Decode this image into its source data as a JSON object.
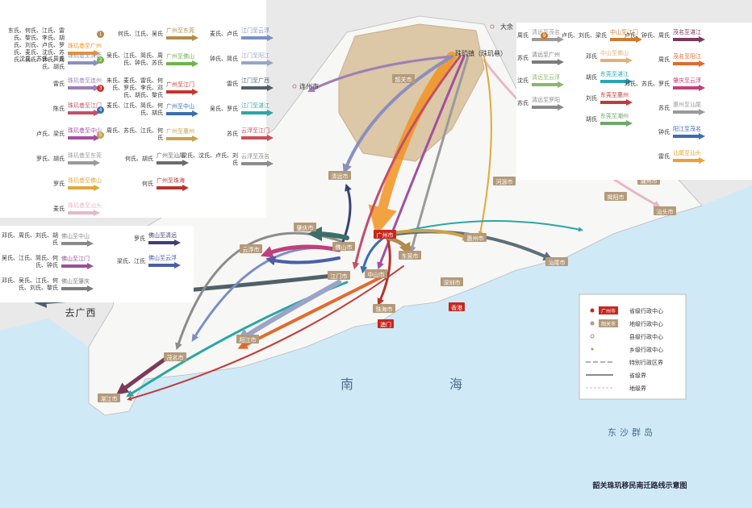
{
  "title": "韶关珠玑移民南迁路线示意图",
  "legend": {
    "items": [
      {
        "sample": "广州市",
        "label": "省级行政中心"
      },
      {
        "sample": "韶关市",
        "label": "地级行政中心"
      },
      {
        "label": "县级行政中心"
      },
      {
        "label": "乡级行政中心"
      },
      {
        "label": "特别行政区界"
      },
      {
        "label": "省级界"
      },
      {
        "label": "地级界"
      }
    ]
  },
  "places": [
    {
      "label": "广州市",
      "kind": "province"
    },
    {
      "label": "韶关市",
      "kind": "prefecture"
    },
    {
      "label": "珠玑镇（珠玑巷）",
      "kind": "town"
    },
    {
      "label": "大余",
      "kind": "county"
    },
    {
      "label": "连州市",
      "kind": "county"
    },
    {
      "label": "清远市",
      "kind": "prefecture"
    },
    {
      "label": "佛山市",
      "kind": "prefecture"
    },
    {
      "label": "肇庆市",
      "kind": "prefecture"
    },
    {
      "label": "云浮市",
      "kind": "prefecture"
    },
    {
      "label": "江门市",
      "kind": "prefecture"
    },
    {
      "label": "中山市",
      "kind": "prefecture"
    },
    {
      "label": "珠海市",
      "kind": "prefecture"
    },
    {
      "label": "澳门",
      "kind": "province"
    },
    {
      "label": "香港",
      "kind": "province"
    },
    {
      "label": "深圳市",
      "kind": "prefecture"
    },
    {
      "label": "东莞市",
      "kind": "prefecture"
    },
    {
      "label": "惠州市",
      "kind": "prefecture"
    },
    {
      "label": "河源市",
      "kind": "prefecture"
    },
    {
      "label": "梅州市",
      "kind": "prefecture"
    },
    {
      "label": "揭阳市",
      "kind": "prefecture"
    },
    {
      "label": "潮州市",
      "kind": "prefecture"
    },
    {
      "label": "汕头市",
      "kind": "prefecture"
    },
    {
      "label": "汕尾市",
      "kind": "prefecture"
    },
    {
      "label": "阳江市",
      "kind": "prefecture"
    },
    {
      "label": "茂名市",
      "kind": "prefecture"
    },
    {
      "label": "湛江市",
      "kind": "prefecture"
    }
  ],
  "sea_labels": [
    "南",
    "海",
    "东沙群岛",
    "去广西"
  ],
  "route_groups": [
    {
      "routes": [
        {
          "surnames": "东氏、何氏、江氏、雷氏、黎氏、李氏、胡氏、刘氏、卢氏、罗氏、麦氏、沈氏、苏氏、吴氏、钟氏、周氏、胡氏",
          "label": "珠玑巷至广州",
          "color": "#f39422"
        },
        {
          "surnames": "沈氏、苏氏、周氏",
          "label": "珠玑巷至清远",
          "color": "#8a8fc0"
        },
        {
          "surnames": "雷氏",
          "label": "珠玑巷至连州",
          "color": "#9d7fb8"
        },
        {
          "surnames": "陈氏",
          "label": "珠玑巷至江门",
          "color": "#c0506a"
        },
        {
          "surnames": "卢氏、梁氏",
          "label": "珠玑巷至中山",
          "color": "#a24f9e"
        },
        {
          "surnames": "罗氏、胡氏",
          "label": "珠玑巷至东莞",
          "color": "#9a9a9a"
        },
        {
          "surnames": "罗氏",
          "label": "珠玑巷至佛山",
          "color": "#e0a83a"
        },
        {
          "surnames": "麦氏",
          "label": "珠玑巷至汕头",
          "color": "#e7b7c9"
        }
      ]
    },
    {
      "routes": [
        {
          "num": "1",
          "surnames": "何氏、江氏、吴氏",
          "label": "广州至东莞",
          "color": "#b38b4a"
        },
        {
          "num": "2",
          "surnames": "吴氏、江氏、简氏、周氏、钟氏、苏氏",
          "label": "广州至佛山",
          "color": "#6fb24a"
        },
        {
          "num": "3",
          "surnames": "朱氏、麦氏、雷氏、何氏、罗氏、李氏、邓氏、胡氏、黎氏",
          "label": "广州至江门",
          "color": "#c8352b"
        },
        {
          "num": "4",
          "surnames": "麦氏、江氏、简氏、何氏、胡氏",
          "label": "广州至中山",
          "color": "#3a6fb0"
        },
        {
          "num": "5",
          "surnames": "周氏、苏氏、江氏、何氏",
          "label": "广州至惠州",
          "color": "#c9a24c"
        },
        {
          "surnames": "何氏、胡氏",
          "label": "广州至汕尾",
          "color": "#6b6b6b"
        },
        {
          "surnames": "何氏",
          "label": "广州至珠海",
          "color": "#b5342e"
        }
      ]
    },
    {
      "routes": [
        {
          "surnames": "麦氏、卢氏",
          "label": "江门至云浮",
          "color": "#7a8fc4"
        },
        {
          "surnames": "钟氏、简氏",
          "label": "江门至阳江",
          "color": "#9aa4c8"
        },
        {
          "surnames": "雷氏",
          "label": "江门至广西",
          "color": "#4f6068"
        },
        {
          "surnames": "吴氏、罗氏",
          "label": "江门至湛江",
          "color": "#2aa6a6"
        },
        {
          "surnames": "苏氏",
          "label": "云浮至江门",
          "color": "#c94d58"
        },
        {
          "surnames": "梁氏、沈氏、卢氏、刘氏",
          "label": "云浮至茂名",
          "color": "#8c8c8c"
        }
      ]
    },
    {
      "routes": [
        {
          "num": "6",
          "surnames": "邓氏、周氏、刘氏、胡氏",
          "label": "佛山至中山",
          "color": "#8a8a8a"
        },
        {
          "num": "7",
          "surnames": "吴氏、江氏、简氏、何氏、钟氏",
          "label": "佛山至江门",
          "color": "#9a4f9a"
        },
        {
          "num": "8",
          "surnames": "邓氏、吴氏、江氏、何氏、刘氏、黎氏",
          "label": "佛山至肇庆",
          "color": "#7c7c7c"
        }
      ]
    },
    {
      "routes": [
        {
          "surnames": "罗氏",
          "label": "佛山至清远",
          "color": "#3a3f7a"
        },
        {
          "surnames": "梁氏、江氏",
          "label": "佛山至云浮",
          "color": "#4a5fa8"
        }
      ]
    },
    {
      "routes": [
        {
          "surnames": "周氏",
          "label": "清远至茂名",
          "color": "#9a9a9a"
        },
        {
          "surnames": "苏氏",
          "label": "清远至广州",
          "color": "#7b7b7b"
        },
        {
          "surnames": "沈氏",
          "label": "清远至云浮",
          "color": "#86b86a"
        },
        {
          "surnames": "苏氏",
          "label": "清远至罗阳",
          "color": "#8a8a8a"
        }
      ]
    },
    {
      "routes": [
        {
          "num": "9",
          "surnames": "卢氏、刘氏、梁氏",
          "label": "中山至江门",
          "color": "#d07a2a"
        },
        {
          "surnames": "邓氏",
          "label": "中山至佛山",
          "color": "#e3b07a"
        },
        {
          "surnames": "胡氏",
          "label": "东莞至湛江",
          "color": "#2ba5b5"
        },
        {
          "surnames": "刘氏",
          "label": "东莞至惠州",
          "color": "#c03a3a"
        },
        {
          "surnames": "胡氏",
          "label": "东莞至潮州",
          "color": "#6ea86a"
        }
      ]
    },
    {
      "routes": [
        {
          "surnames": "卢氏、钟氏、周氏",
          "label": "茂名至湛江",
          "color": "#7b3a58"
        },
        {
          "surnames": "周氏",
          "label": "茂名至阳江",
          "color": "#e26a2c"
        },
        {
          "surnames": "邓氏、苏氏、罗氏",
          "label": "肇庆至云浮",
          "color": "#c0407a"
        },
        {
          "surnames": "苏氏",
          "label": "惠州至汕尾",
          "color": "#9a9a9a"
        },
        {
          "surnames": "钟氏",
          "label": "阳江至茂名",
          "color": "#3a6fb0"
        },
        {
          "surnames": "雷氏",
          "label": "汕尾至汕头",
          "color": "#f0a030"
        }
      ]
    }
  ]
}
